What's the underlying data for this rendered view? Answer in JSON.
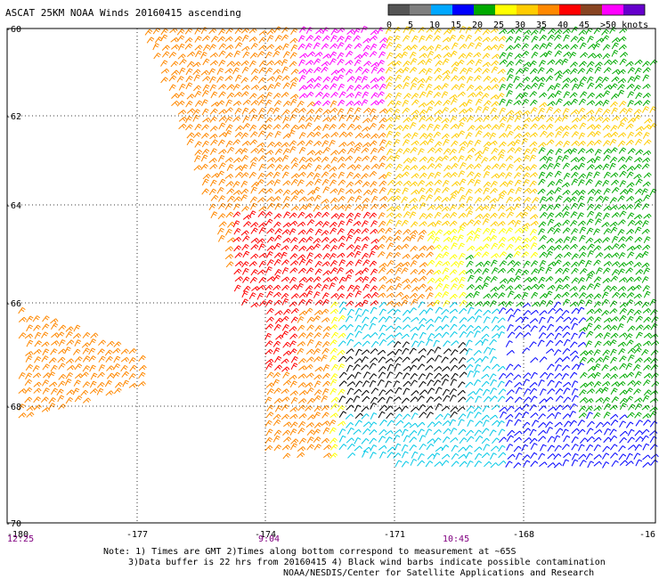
{
  "title": "ASCAT 25KM NOAA Winds 20160415 ascending",
  "colorbar": {
    "labels": [
      "0",
      "5",
      "10",
      "15",
      "20",
      "25",
      "30",
      "35",
      "40",
      "45",
      ">50 knots"
    ],
    "colors": [
      "#555555",
      "#7f7f7f",
      "#00a8ff",
      "#0000ff",
      "#00aa00",
      "#ffff00",
      "#ffcc00",
      "#ff8800",
      "#ff0000",
      "#884422",
      "#ff00ff",
      "#6600cc"
    ]
  },
  "map": {
    "lon_labels": [
      "-180",
      "-177",
      "-174",
      "-171",
      "-168",
      "-16"
    ],
    "lat_labels": [
      "-60",
      "-62",
      "-64",
      "-66",
      "-68",
      "-70"
    ],
    "times": [
      "12:25",
      "9:04",
      "10:45"
    ]
  },
  "notes": {
    "line1": "Note: 1) Times are GMT 2)Times along bottom correspond to measurement at ~65S",
    "line2": "3)Data buffer is 22 hrs from 20160415 4) Black wind barbs indicate possible contamination",
    "line3": "NOAA/NESDIS/Center for Satellite Applications and Research"
  }
}
